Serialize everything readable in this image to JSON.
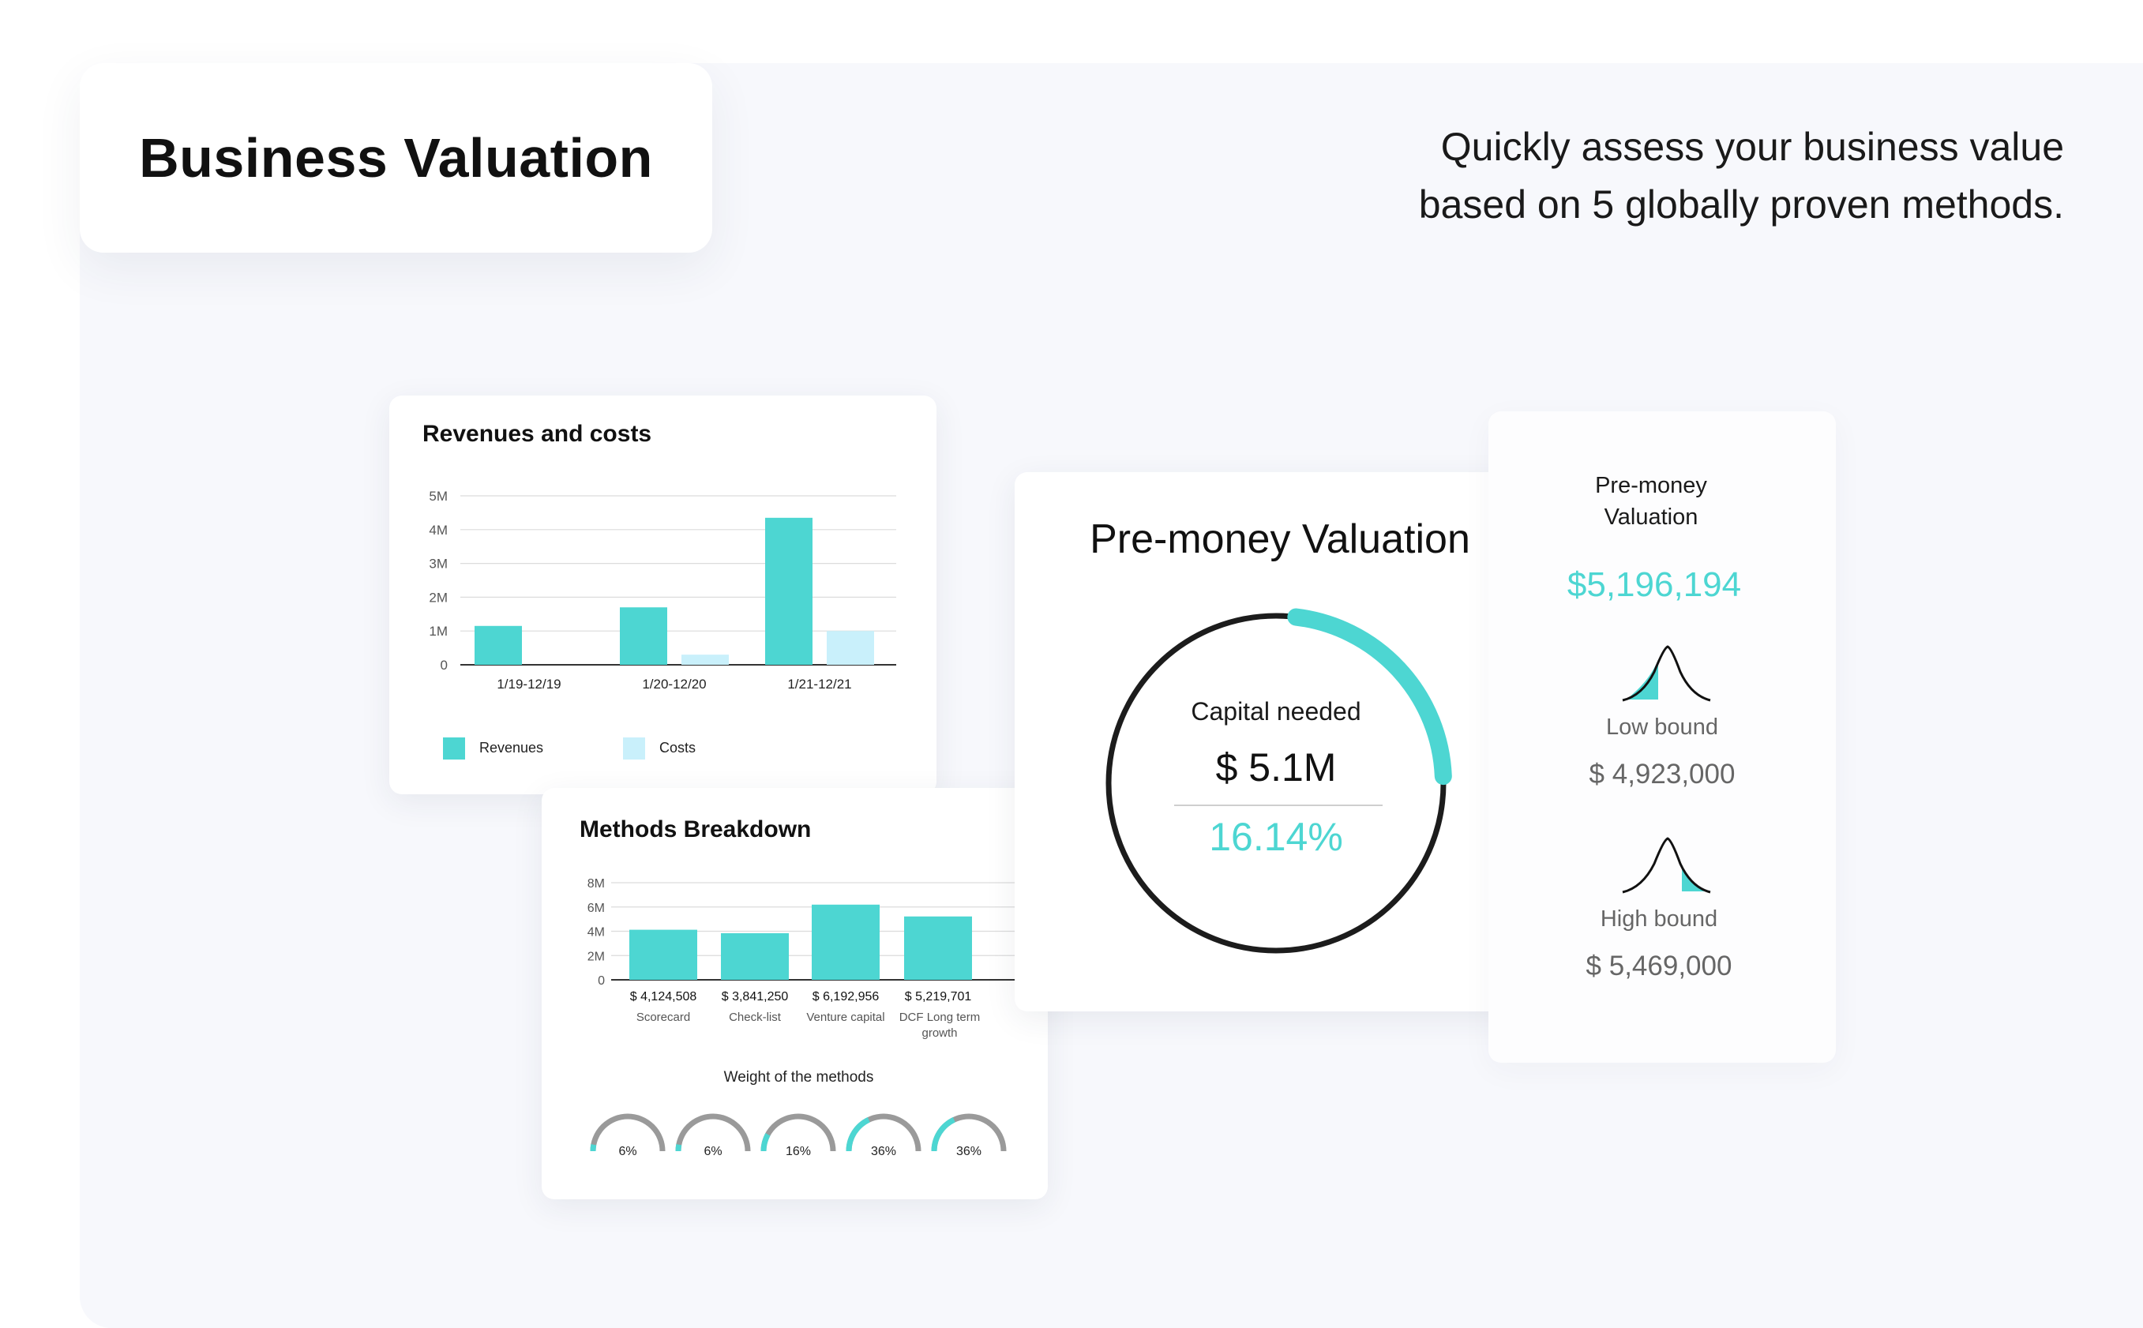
{
  "header": {
    "title": "Business Valuation",
    "tagline_line1": "Quickly assess your business value",
    "tagline_line2": "based on 5 globally proven methods."
  },
  "revenues_card": {
    "title": "Revenues and costs",
    "legend": [
      "Revenues",
      "Costs"
    ]
  },
  "methods_card": {
    "title": "Methods Breakdown",
    "bar_value_labels": [
      "$ 4,124,508",
      "$ 3,841,250",
      "$ 6,192,956",
      "$ 5,219,701"
    ],
    "bar_category_labels": [
      [
        "Scorecard"
      ],
      [
        "Check-list"
      ],
      [
        "Venture capital"
      ],
      [
        "DCF Long term",
        "growth"
      ]
    ],
    "weights_title": "Weight of the methods",
    "weights": [
      {
        "label": "6%",
        "value": 0.06
      },
      {
        "label": "6%",
        "value": 0.06
      },
      {
        "label": "16%",
        "value": 0.16
      },
      {
        "label": "36%",
        "value": 0.36
      },
      {
        "label": "36%",
        "value": 0.36
      }
    ]
  },
  "premoney_card": {
    "title": "Pre-money Valuation",
    "capital_label": "Capital needed",
    "capital_value": "$ 5.1M",
    "percent": "16.14%",
    "percent_value": 0.1614
  },
  "bounds_card": {
    "title_line1": "Pre-money",
    "title_line2": "Valuation",
    "value": "$5,196,194",
    "low_label": "Low bound",
    "low_value": "$ 4,923,000",
    "high_label": "High bound",
    "high_value": "$ 5,469,000"
  },
  "colors": {
    "accent": "#4dd6d2",
    "accent_light": "#c9f0fb",
    "dark": "#1c1c1c",
    "gray": "#9a9a9a",
    "panel_bg": "#f7f8fc"
  },
  "chart_data": [
    {
      "type": "bar",
      "title": "Revenues and costs",
      "categories": [
        "1/19-12/19",
        "1/20-12/20",
        "1/21-12/21"
      ],
      "series": [
        {
          "name": "Revenues",
          "values": [
            1.15,
            1.7,
            4.35
          ]
        },
        {
          "name": "Costs",
          "values": [
            0,
            0.3,
            1.0
          ]
        }
      ],
      "ylim": [
        0,
        5
      ],
      "yticks": [
        "0",
        "1M",
        "2M",
        "3M",
        "4M",
        "5M"
      ],
      "yticks_values": [
        0,
        1,
        2,
        3,
        4,
        5
      ],
      "grid": true,
      "legend": "bottom-left"
    },
    {
      "type": "bar",
      "title": "Methods Breakdown",
      "categories": [
        "Scorecard",
        "Check-list",
        "Venture capital",
        "DCF Long term growth"
      ],
      "values": [
        4124508,
        3841250,
        6192956,
        5219701
      ],
      "ylim": [
        0,
        8000000
      ],
      "yticks": [
        "0",
        "2M",
        "4M",
        "6M",
        "8M"
      ],
      "yticks_values": [
        0,
        2000000,
        4000000,
        6000000,
        8000000
      ],
      "grid": true
    }
  ]
}
